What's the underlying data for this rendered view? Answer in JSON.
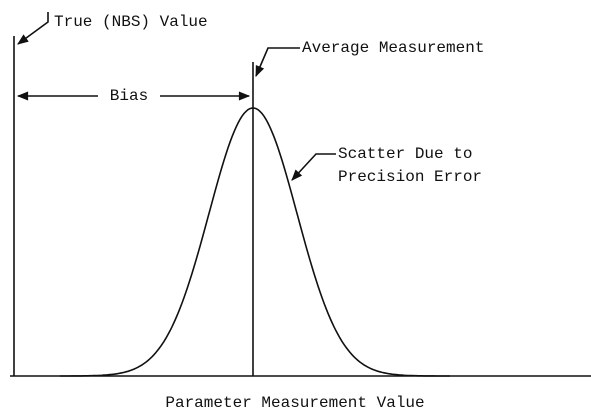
{
  "labels": {
    "true_value": "True (NBS) Value",
    "average": "Average Measurement",
    "bias": "Bias",
    "scatter": [
      "Scatter Due to",
      "Precision Error"
    ],
    "x_axis": "Parameter Measurement Value"
  }
}
